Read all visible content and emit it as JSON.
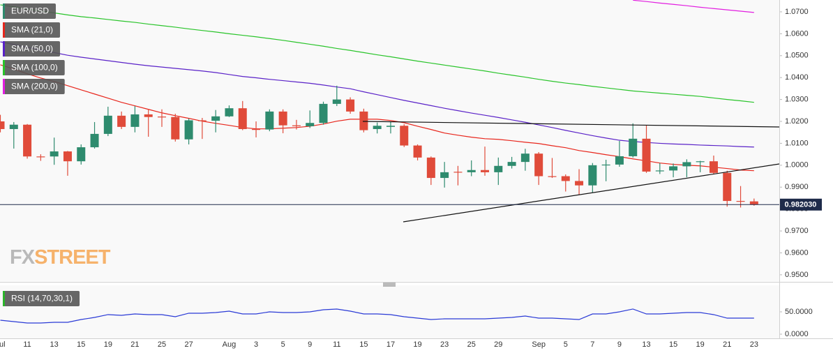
{
  "chart_data": [
    {
      "type": "candlestick",
      "name": "EUR/USD",
      "categories": [
        "Jul",
        null,
        "11",
        null,
        "13",
        null,
        "15",
        null,
        "19",
        null,
        "21",
        null,
        "25",
        null,
        "27",
        null,
        null,
        "Aug",
        null,
        "3",
        null,
        "5",
        null,
        "9",
        null,
        "11",
        null,
        "15",
        null,
        "17",
        null,
        "19",
        null,
        "23",
        null,
        "25",
        null,
        "29",
        null,
        null,
        "Sep",
        null,
        "5",
        null,
        "7",
        null,
        "9",
        null,
        "13",
        null,
        "15",
        null,
        "19",
        null,
        "21",
        null,
        "23"
      ],
      "open": [
        1.02,
        1.0165,
        1.0185,
        1.004,
        1.004,
        1.0063,
        1.0018,
        1.0082,
        1.0143,
        1.0226,
        1.0175,
        1.0232,
        1.0222,
        1.022,
        1.0118,
        1.0205,
        1.0203,
        1.0223,
        1.026,
        1.0165,
        1.0163,
        1.0245,
        1.0182,
        1.0178,
        1.0193,
        1.028,
        1.03,
        1.0245,
        1.0165,
        1.0175,
        1.018,
        1.009,
        1.0035,
        0.9942,
        0.997,
        0.9968,
        0.9978,
        0.9968,
        0.9997,
        1.0015,
        1.0053,
        0.995,
        0.995,
        0.9928,
        0.9908,
        1.0,
        1.0003,
        1.0041,
        1.0121,
        0.9973,
        0.9976,
        0.9995,
        1.0015,
        1.0018,
        0.9965,
        0.9837,
        0.9835
      ],
      "high": [
        1.023,
        1.0197,
        1.0188,
        1.005,
        1.0126,
        1.0065,
        1.0095,
        1.0197,
        1.0267,
        1.0245,
        1.027,
        1.0255,
        1.0255,
        1.0235,
        1.0213,
        1.0216,
        1.0252,
        1.0273,
        1.0293,
        1.02,
        1.0255,
        1.0255,
        1.0207,
        1.025,
        1.029,
        1.0363,
        1.031,
        1.0258,
        1.0195,
        1.02,
        1.0187,
        1.0095,
        1.004,
        1.0015,
        0.9997,
        1.0022,
        1.0085,
        1.0035,
        1.0038,
        1.0075,
        1.006,
        1.0033,
        0.9958,
        0.9982,
        1.001,
        1.0025,
        1.0111,
        1.0191,
        1.0181,
        1.001,
        1.0008,
        1.0027,
        1.002,
        1.0044,
        0.9975,
        0.9905,
        0.9848
      ],
      "low": [
        1.015,
        1.0076,
        1.003,
        1.002,
        1.0002,
        0.9952,
        1.0003,
        1.0076,
        1.0133,
        1.0165,
        1.015,
        1.013,
        1.0175,
        1.0108,
        1.0095,
        1.012,
        1.015,
        1.022,
        1.016,
        1.0127,
        1.0155,
        1.0146,
        1.0163,
        1.017,
        1.0185,
        1.027,
        1.0235,
        1.015,
        1.0145,
        1.0145,
        1.0083,
        1.0022,
        0.991,
        0.9898,
        0.9908,
        0.995,
        0.9952,
        0.991,
        0.9985,
        0.9975,
        0.991,
        0.9942,
        0.988,
        0.9866,
        0.9876,
        0.9927,
        0.9993,
        1.0035,
        0.9965,
        0.996,
        0.9945,
        0.9945,
        0.9968,
        0.9958,
        0.9811,
        0.9807,
        0.9815
      ],
      "close": [
        1.0165,
        1.0185,
        1.004,
        1.0038,
        1.0063,
        1.0018,
        1.0082,
        1.0143,
        1.0226,
        1.0175,
        1.0232,
        1.022,
        1.022,
        1.0118,
        1.0205,
        1.0203,
        1.0223,
        1.026,
        1.0165,
        1.0163,
        1.0245,
        1.0182,
        1.0178,
        1.0193,
        1.028,
        1.03,
        1.0245,
        1.016,
        1.018,
        1.018,
        1.009,
        1.0035,
        0.9942,
        0.9968,
        0.9968,
        0.9978,
        0.9968,
        0.9997,
        1.0015,
        1.0053,
        0.995,
        0.9948,
        0.9928,
        0.9908,
        1.0,
        1.0003,
        1.0041,
        1.0121,
        0.9971,
        0.9976,
        0.9995,
        1.0014,
        1.0018,
        0.9965,
        0.9837,
        0.9835,
        0.98203
      ],
      "up_color": "#2e8b6e",
      "down_color": "#e04b3a",
      "series": [
        {
          "name": "SMA (21,0)",
          "color": "#e8261c",
          "values": [
            1.0458,
            1.0439,
            1.0417,
            1.0398,
            1.0382,
            1.0363,
            1.0344,
            1.0325,
            1.0306,
            1.0287,
            1.0271,
            1.0255,
            1.0239,
            1.0226,
            1.0214,
            1.0201,
            1.0191,
            1.0182,
            1.0172,
            1.0166,
            1.0166,
            1.0169,
            1.0172,
            1.0178,
            1.0188,
            1.0201,
            1.021,
            1.021,
            1.021,
            1.0204,
            1.0194,
            1.0178,
            1.0163,
            1.0147,
            1.0137,
            1.0128,
            1.0121,
            1.0118,
            1.0112,
            1.0105,
            1.0099,
            1.0089,
            1.008,
            1.0067,
            1.0058,
            1.0048,
            1.0039,
            1.0029,
            1.002,
            1.001,
            1.0004,
            1.0,
            0.9997,
            0.9991,
            0.9985,
            0.9978,
            0.9975
          ]
        },
        {
          "name": "SMA (50,0)",
          "color": "#5a22c8",
          "values": [
            1.0563,
            1.0551,
            1.0538,
            1.0526,
            1.0514,
            1.0502,
            1.0493,
            1.0485,
            1.0477,
            1.0469,
            1.0461,
            1.0454,
            1.0448,
            1.0442,
            1.0436,
            1.043,
            1.0423,
            1.0414,
            1.0405,
            1.0399,
            1.0392,
            1.0386,
            1.038,
            1.0374,
            1.0366,
            1.0357,
            1.0349,
            1.0335,
            1.0322,
            1.0309,
            1.0296,
            1.0284,
            1.0272,
            1.026,
            1.0249,
            1.0238,
            1.0228,
            1.0218,
            1.0207,
            1.0196,
            1.0184,
            1.0172,
            1.0159,
            1.0147,
            1.0135,
            1.0124,
            1.0114,
            1.0108,
            1.0104,
            1.01,
            1.0097,
            1.0095,
            1.0092,
            1.009,
            1.0088,
            1.0085,
            1.0083
          ]
        },
        {
          "name": "SMA (100,0)",
          "color": "#29c42a",
          "values": [
            1.0732,
            1.0723,
            1.0713,
            1.0704,
            1.0695,
            1.0686,
            1.0678,
            1.0672,
            1.0665,
            1.0658,
            1.0652,
            1.0644,
            1.0637,
            1.063,
            1.0622,
            1.0615,
            1.0608,
            1.06,
            1.0593,
            1.0586,
            1.0578,
            1.057,
            1.0561,
            1.0552,
            1.0543,
            1.0533,
            1.0524,
            1.0514,
            1.0504,
            1.0495,
            1.0485,
            1.0475,
            1.0466,
            1.0457,
            1.0448,
            1.0439,
            1.043,
            1.042,
            1.0411,
            1.0402,
            1.0392,
            1.0383,
            1.0375,
            1.0368,
            1.036,
            1.0353,
            1.0346,
            1.0339,
            1.0334,
            1.0329,
            1.0324,
            1.0319,
            1.0314,
            1.0307,
            1.03,
            1.0294,
            1.0287
          ]
        },
        {
          "name": "SMA (200,0)",
          "color": "#e21ee0",
          "values": [
            null,
            null,
            null,
            null,
            null,
            null,
            null,
            null,
            null,
            null,
            null,
            null,
            null,
            null,
            null,
            null,
            null,
            null,
            null,
            null,
            null,
            null,
            null,
            null,
            null,
            null,
            null,
            null,
            null,
            null,
            null,
            null,
            null,
            null,
            null,
            null,
            null,
            null,
            null,
            null,
            null,
            null,
            null,
            null,
            null,
            null,
            null,
            1.0753,
            1.0747,
            1.074,
            1.0734,
            1.0728,
            1.0721,
            1.0715,
            1.0709,
            1.0703,
            1.0697
          ]
        }
      ],
      "ylim": [
        0.9471,
        1.0754
      ],
      "yticks": [
        {
          "value": 0.95,
          "label": "0.9500"
        },
        {
          "value": 0.96,
          "label": "0.9600"
        },
        {
          "value": 0.97,
          "label": "0.9700"
        },
        {
          "value": 0.98,
          "label": "0.9800"
        },
        {
          "value": 0.99,
          "label": "0.9900"
        },
        {
          "value": 1.0,
          "label": "1.0000"
        },
        {
          "value": 1.01,
          "label": "1.0100"
        },
        {
          "value": 1.02,
          "label": "1.0200"
        },
        {
          "value": 1.03,
          "label": "1.0300"
        },
        {
          "value": 1.04,
          "label": "1.0400"
        },
        {
          "value": 1.05,
          "label": "1.0500"
        },
        {
          "value": 1.06,
          "label": "1.0600"
        },
        {
          "value": 1.07,
          "label": "1.0700"
        }
      ],
      "last_price": {
        "value": 0.98203,
        "label": "0.982030"
      },
      "last_price_color": "#1e2b4a",
      "grid": true,
      "watermark": [
        "FX",
        "STREET"
      ]
    },
    {
      "type": "line",
      "series": [
        {
          "name": "RSI (14,70,30,1)",
          "color": "#2a3ad6",
          "values": [
            31.3,
            28.1,
            25.0,
            25.0,
            26.6,
            26.6,
            32.8,
            37.5,
            43.8,
            42.2,
            45.3,
            43.8,
            43.8,
            39.1,
            46.9,
            46.9,
            48.4,
            51.6,
            45.3,
            45.3,
            50.0,
            48.4,
            48.4,
            50.0,
            54.7,
            56.3,
            51.6,
            45.3,
            45.3,
            43.8,
            39.1,
            35.9,
            32.8,
            34.4,
            34.4,
            34.4,
            34.4,
            35.9,
            37.5,
            40.6,
            35.9,
            35.9,
            34.4,
            32.8,
            45.3,
            45.3,
            50.0,
            56.3,
            45.3,
            45.3,
            46.9,
            48.4,
            48.4,
            43.8,
            35.9,
            35.9,
            35.9
          ]
        }
      ],
      "bands": [
        {
          "from": 70,
          "to": 100,
          "color": "#7ef07e"
        },
        {
          "from": 0,
          "to": 30,
          "color": "#f77b7b"
        }
      ],
      "ylim": [
        0,
        110
      ],
      "yticks": [
        {
          "value": 0,
          "label": "0.0000"
        },
        {
          "value": 50,
          "label": "50.0000"
        }
      ],
      "grid": true
    }
  ]
}
